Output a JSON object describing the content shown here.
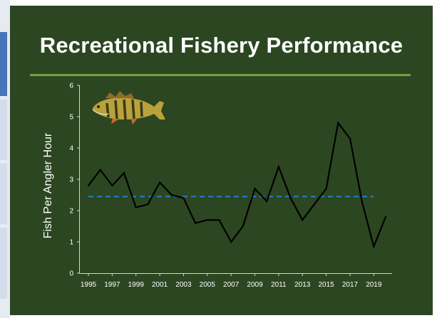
{
  "slide": {
    "title": "Recreational Fishery Performance",
    "background_color": "#2c4621",
    "rule_color": "#76a33b",
    "decoration_icon": "yellow-perch-fish-icon"
  },
  "chart_data": {
    "type": "line",
    "title": "",
    "xlabel": "",
    "ylabel": "Fish Per Angler Hour",
    "ylim": [
      0,
      6
    ],
    "xlim": [
      1995,
      2020
    ],
    "y_ticks": [
      "0",
      "1",
      "2",
      "3",
      "4",
      "5",
      "6"
    ],
    "x_ticks": [
      "1995",
      "1997",
      "1999",
      "2001",
      "2003",
      "2005",
      "2007",
      "2009",
      "2011",
      "2013",
      "2015",
      "2017",
      "2019"
    ],
    "grid": false,
    "legend": "none",
    "series": [
      {
        "color": "#000000",
        "x": [
          1995,
          1996,
          1997,
          1998,
          1999,
          2000,
          2001,
          2002,
          2003,
          2004,
          2005,
          2006,
          2007,
          2008,
          2009,
          2010,
          2011,
          2012,
          2013,
          2014,
          2015,
          2016,
          2017,
          2018,
          2019,
          2020
        ],
        "values": [
          2.8,
          3.3,
          2.8,
          3.2,
          2.1,
          2.2,
          2.9,
          2.5,
          2.4,
          1.6,
          1.7,
          1.7,
          1.0,
          1.5,
          2.7,
          2.3,
          3.4,
          2.4,
          1.7,
          2.2,
          2.7,
          4.8,
          4.3,
          2.3,
          0.85,
          1.8
        ]
      }
    ],
    "reference_line": {
      "style": "dashed",
      "color": "#1f7fd0",
      "value": 2.45,
      "x_range": [
        1995,
        2019
      ]
    }
  }
}
